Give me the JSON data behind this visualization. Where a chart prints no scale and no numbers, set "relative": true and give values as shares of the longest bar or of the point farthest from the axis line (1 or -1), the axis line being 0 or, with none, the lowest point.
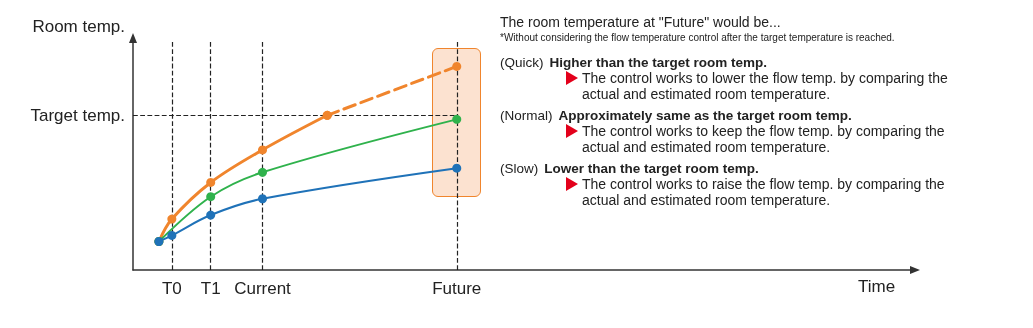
{
  "chart_data": {
    "type": "line",
    "relative": true,
    "xlabel": "Time",
    "ylabel": "Room temp.",
    "categories": [
      null,
      null,
      null,
      "T0",
      null,
      null,
      "T1",
      null,
      null,
      null,
      "Current",
      null,
      null,
      null,
      null,
      null,
      null,
      null,
      null,
      null,
      null,
      null,
      null,
      null,
      null,
      "Future",
      null,
      null,
      null,
      null,
      null,
      null,
      null,
      null,
      null,
      null,
      null,
      null,
      null,
      null,
      null,
      null,
      null,
      null,
      null,
      null,
      null,
      null,
      null,
      null,
      null,
      null,
      null,
      null,
      null,
      null,
      null,
      null,
      null,
      null,
      null
    ],
    "series": [
      {
        "color": "#f0852d",
        "line_style": "solid",
        "values": [
          null,
          null,
          0.14,
          0.25,
          null,
          null,
          0.43,
          null,
          null,
          null,
          0.59,
          null,
          null,
          null,
          null,
          0.76,
          null,
          null,
          null,
          null,
          null,
          null,
          null,
          null,
          null,
          null,
          null,
          null,
          null,
          null,
          null,
          null,
          null,
          null,
          null,
          null,
          null,
          null,
          null,
          null,
          null,
          null,
          null,
          null,
          null,
          null,
          null,
          null,
          null,
          null,
          null,
          null,
          null,
          null,
          null,
          null,
          null,
          null,
          null,
          null,
          null
        ]
      },
      {
        "color": "#f0852d",
        "line_style": "dashed",
        "values": [
          null,
          null,
          null,
          null,
          null,
          null,
          null,
          null,
          null,
          null,
          null,
          null,
          null,
          null,
          null,
          0.76,
          null,
          null,
          null,
          null,
          null,
          null,
          null,
          null,
          null,
          1,
          null,
          null,
          null,
          null,
          null,
          null,
          null,
          null,
          null,
          null,
          null,
          null,
          null,
          null,
          null,
          null,
          null,
          null,
          null,
          null,
          null,
          null,
          null,
          null,
          null,
          null,
          null,
          null,
          null,
          null,
          null,
          null,
          null,
          null,
          null
        ]
      },
      {
        "color": "#2fb24c",
        "line_style": "solid",
        "values": [
          null,
          null,
          0.14,
          null,
          null,
          null,
          0.36,
          null,
          null,
          null,
          0.48,
          null,
          null,
          null,
          null,
          null,
          null,
          null,
          null,
          null,
          null,
          null,
          null,
          null,
          null,
          0.74,
          null,
          null,
          null,
          null,
          null,
          null,
          null,
          null,
          null,
          null,
          null,
          null,
          null,
          null,
          null,
          null,
          null,
          null,
          null,
          null,
          null,
          null,
          null,
          null,
          null,
          null,
          null,
          null,
          null,
          null,
          null,
          null,
          null,
          null,
          null
        ]
      },
      {
        "color": "#1f72b8",
        "line_style": "solid",
        "values": [
          null,
          null,
          0.14,
          0.17,
          null,
          null,
          0.27,
          null,
          null,
          null,
          0.35,
          null,
          null,
          null,
          null,
          null,
          null,
          null,
          null,
          null,
          null,
          null,
          null,
          null,
          null,
          0.5,
          null,
          null,
          null,
          null,
          null,
          null,
          null,
          null,
          null,
          null,
          null,
          null,
          null,
          null,
          null,
          null,
          null,
          null,
          null,
          null,
          null,
          null,
          null,
          null,
          null,
          null,
          null,
          null,
          null,
          null,
          null,
          null,
          null,
          null,
          null
        ]
      }
    ],
    "marker": "circle",
    "grid": false,
    "ref_lines": [
      {
        "axis": "y",
        "value": 0.76,
        "label": "Target temp."
      },
      {
        "axis": "x",
        "value": "T0",
        "label": null
      },
      {
        "axis": "x",
        "value": "T1",
        "label": null
      },
      {
        "axis": "x",
        "value": "Current",
        "label": null
      },
      {
        "axis": "x",
        "value": "Future",
        "label": null
      }
    ],
    "annotations": [
      "The room temperature at \"Future\" would be...",
      "*Without considering the flow temperature control after the target temperature is reached.",
      "(Quick) Higher than the target room temp.",
      "The control works to lower the flow temp. by comparing the actual and estimated room temperature.",
      "(Normal) Approximately same as the target room temp.",
      "The control works to keep the flow temp. by comparing the actual and estimated room temperature.",
      "(Slow) Lower than the target room temp.",
      "The control works to raise the flow temp. by comparing the actual and estimated room temperature."
    ]
  }
}
